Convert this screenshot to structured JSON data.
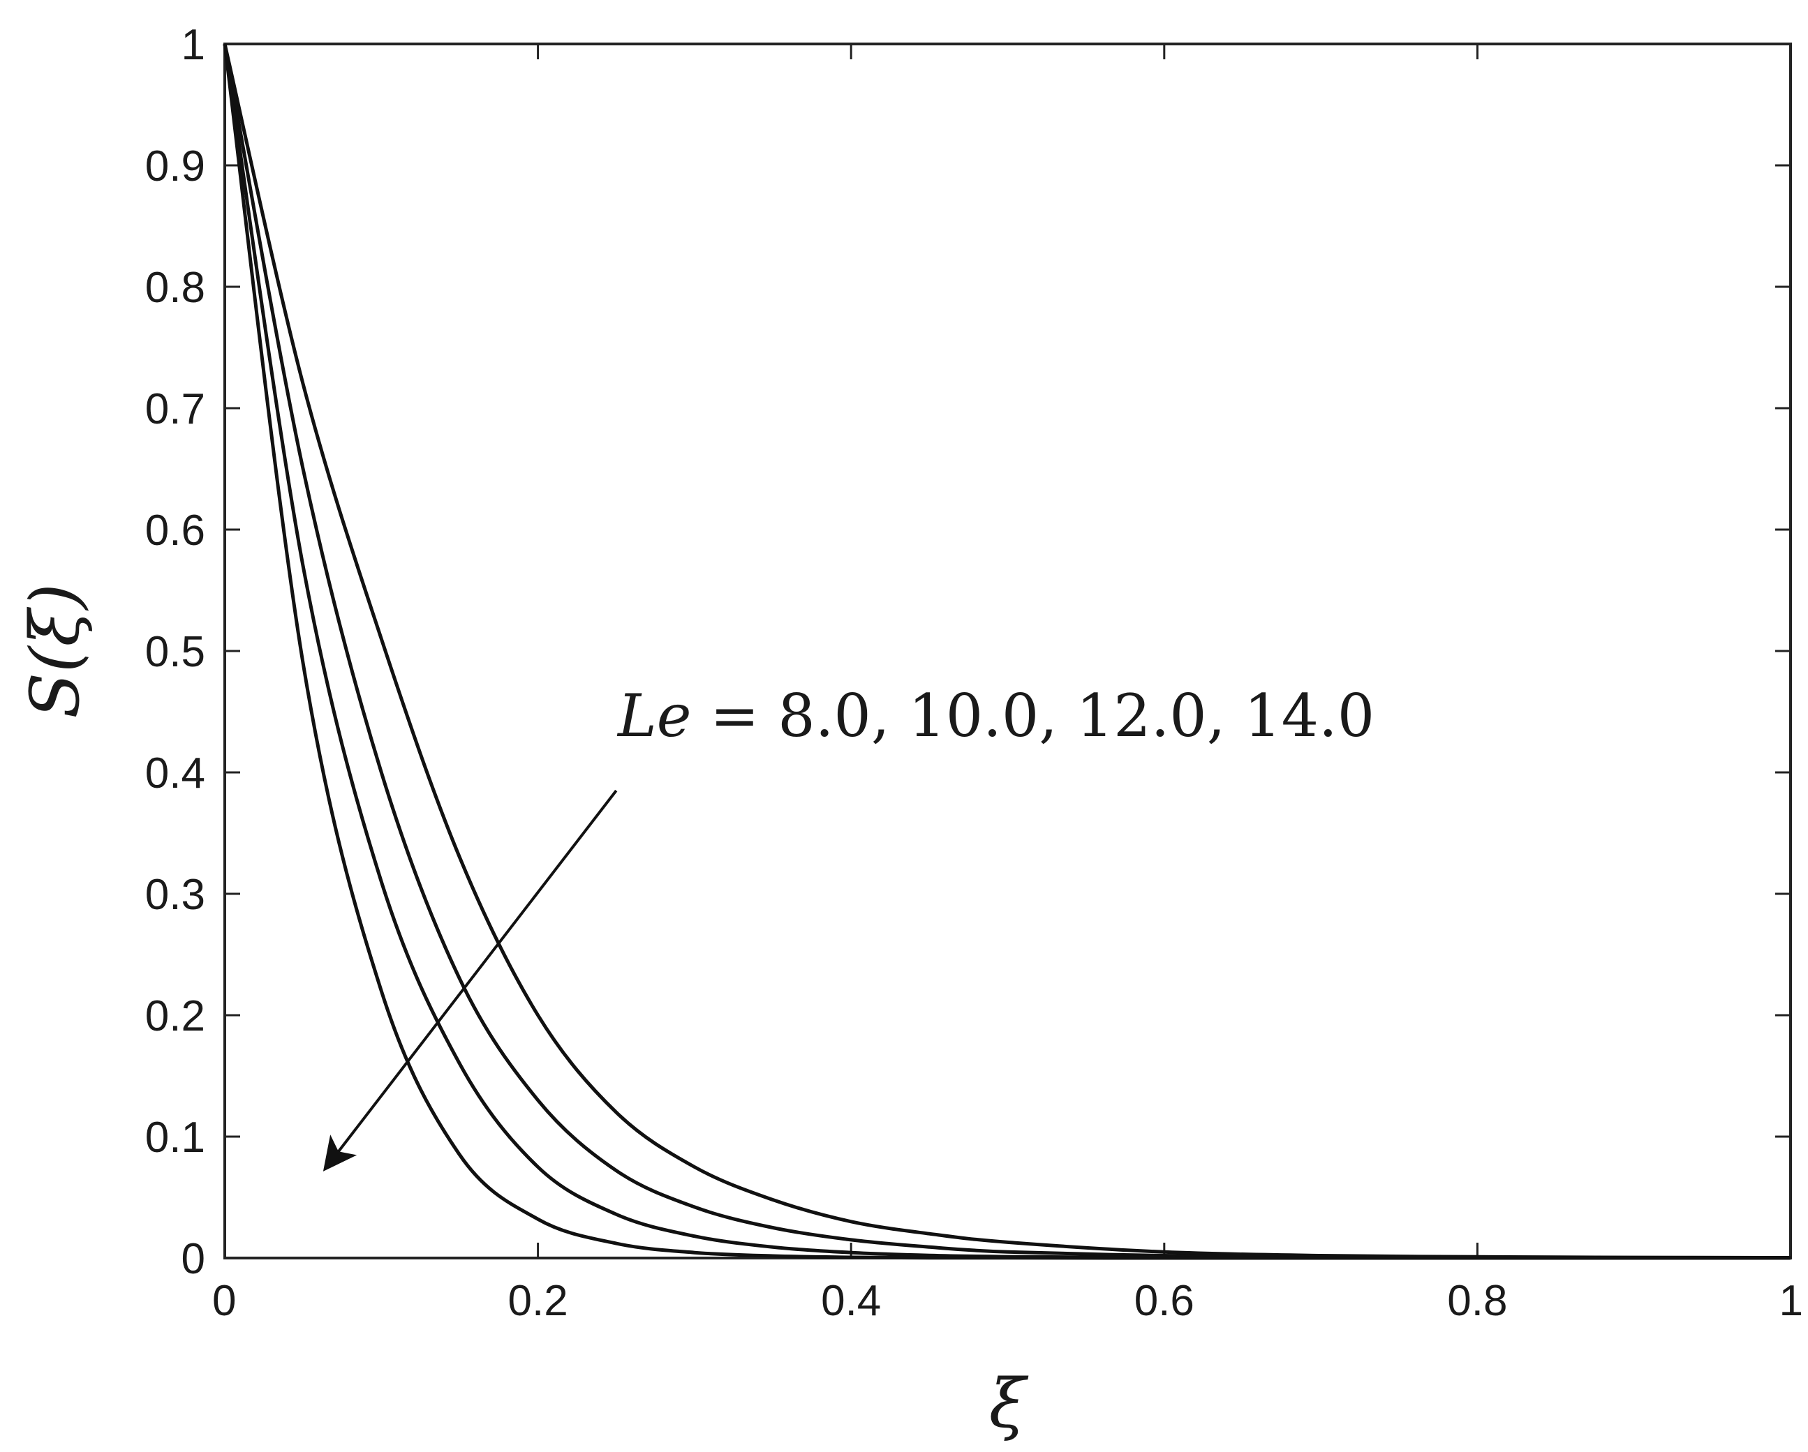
{
  "chart_data": {
    "type": "line",
    "xlabel": "ξ",
    "ylabel": "S(ξ)",
    "xlim": [
      0,
      1
    ],
    "ylim": [
      0,
      1
    ],
    "xticks": [
      0,
      0.2,
      0.4,
      0.6,
      0.8,
      1
    ],
    "xtick_labels": [
      "0",
      "0.2",
      "0.4",
      "0.6",
      "0.8",
      "1"
    ],
    "yticks": [
      0,
      0.1,
      0.2,
      0.3,
      0.4,
      0.5,
      0.6,
      0.7,
      0.8,
      0.9,
      1
    ],
    "ytick_labels": [
      "0",
      "0.1",
      "0.2",
      "0.3",
      "0.4",
      "0.5",
      "0.6",
      "0.7",
      "0.8",
      "0.9",
      "1"
    ],
    "grid": false,
    "legend": "none",
    "annotation": {
      "var": "Le",
      "rest": " = 8.0, 10.0, 12.0, 14.0",
      "arrow_from": [
        0.25,
        0.385
      ],
      "arrow_to": [
        0.065,
        0.075
      ]
    },
    "line_color": "#111111",
    "series": [
      {
        "x": [
          0,
          0.05,
          0.1,
          0.15,
          0.2,
          0.25,
          0.3,
          0.35,
          0.4,
          0.45,
          0.5,
          0.6,
          0.7,
          0.8,
          0.9,
          1.0
        ],
        "y": [
          1,
          0.72,
          0.51,
          0.33,
          0.2,
          0.12,
          0.075,
          0.048,
          0.03,
          0.02,
          0.013,
          0.005,
          0.002,
          0.001,
          0.0005,
          0.0003
        ]
      },
      {
        "x": [
          0,
          0.05,
          0.1,
          0.15,
          0.2,
          0.25,
          0.3,
          0.35,
          0.4,
          0.45,
          0.5,
          0.6,
          0.7,
          0.8,
          0.9,
          1.0
        ],
        "y": [
          1,
          0.65,
          0.4,
          0.23,
          0.13,
          0.072,
          0.042,
          0.025,
          0.015,
          0.009,
          0.005,
          0.002,
          0.001,
          0.0004,
          0.0002,
          0.0001
        ]
      },
      {
        "x": [
          0,
          0.05,
          0.1,
          0.15,
          0.2,
          0.25,
          0.3,
          0.35,
          0.4,
          0.45,
          0.5,
          0.6,
          0.7,
          0.8,
          0.9,
          1.0
        ],
        "y": [
          1,
          0.57,
          0.31,
          0.16,
          0.075,
          0.036,
          0.018,
          0.009,
          0.0045,
          0.0022,
          0.0011,
          0.0003,
          0.0001,
          0,
          0,
          0
        ]
      },
      {
        "x": [
          0,
          0.05,
          0.1,
          0.15,
          0.2,
          0.25,
          0.3,
          0.35,
          0.4,
          0.45,
          0.5,
          0.6,
          0.7,
          0.8,
          0.9,
          1.0
        ],
        "y": [
          1,
          0.49,
          0.22,
          0.085,
          0.032,
          0.012,
          0.0045,
          0.0017,
          0.0006,
          0.0002,
          0.0001,
          0,
          0,
          0,
          0,
          0
        ]
      }
    ]
  }
}
